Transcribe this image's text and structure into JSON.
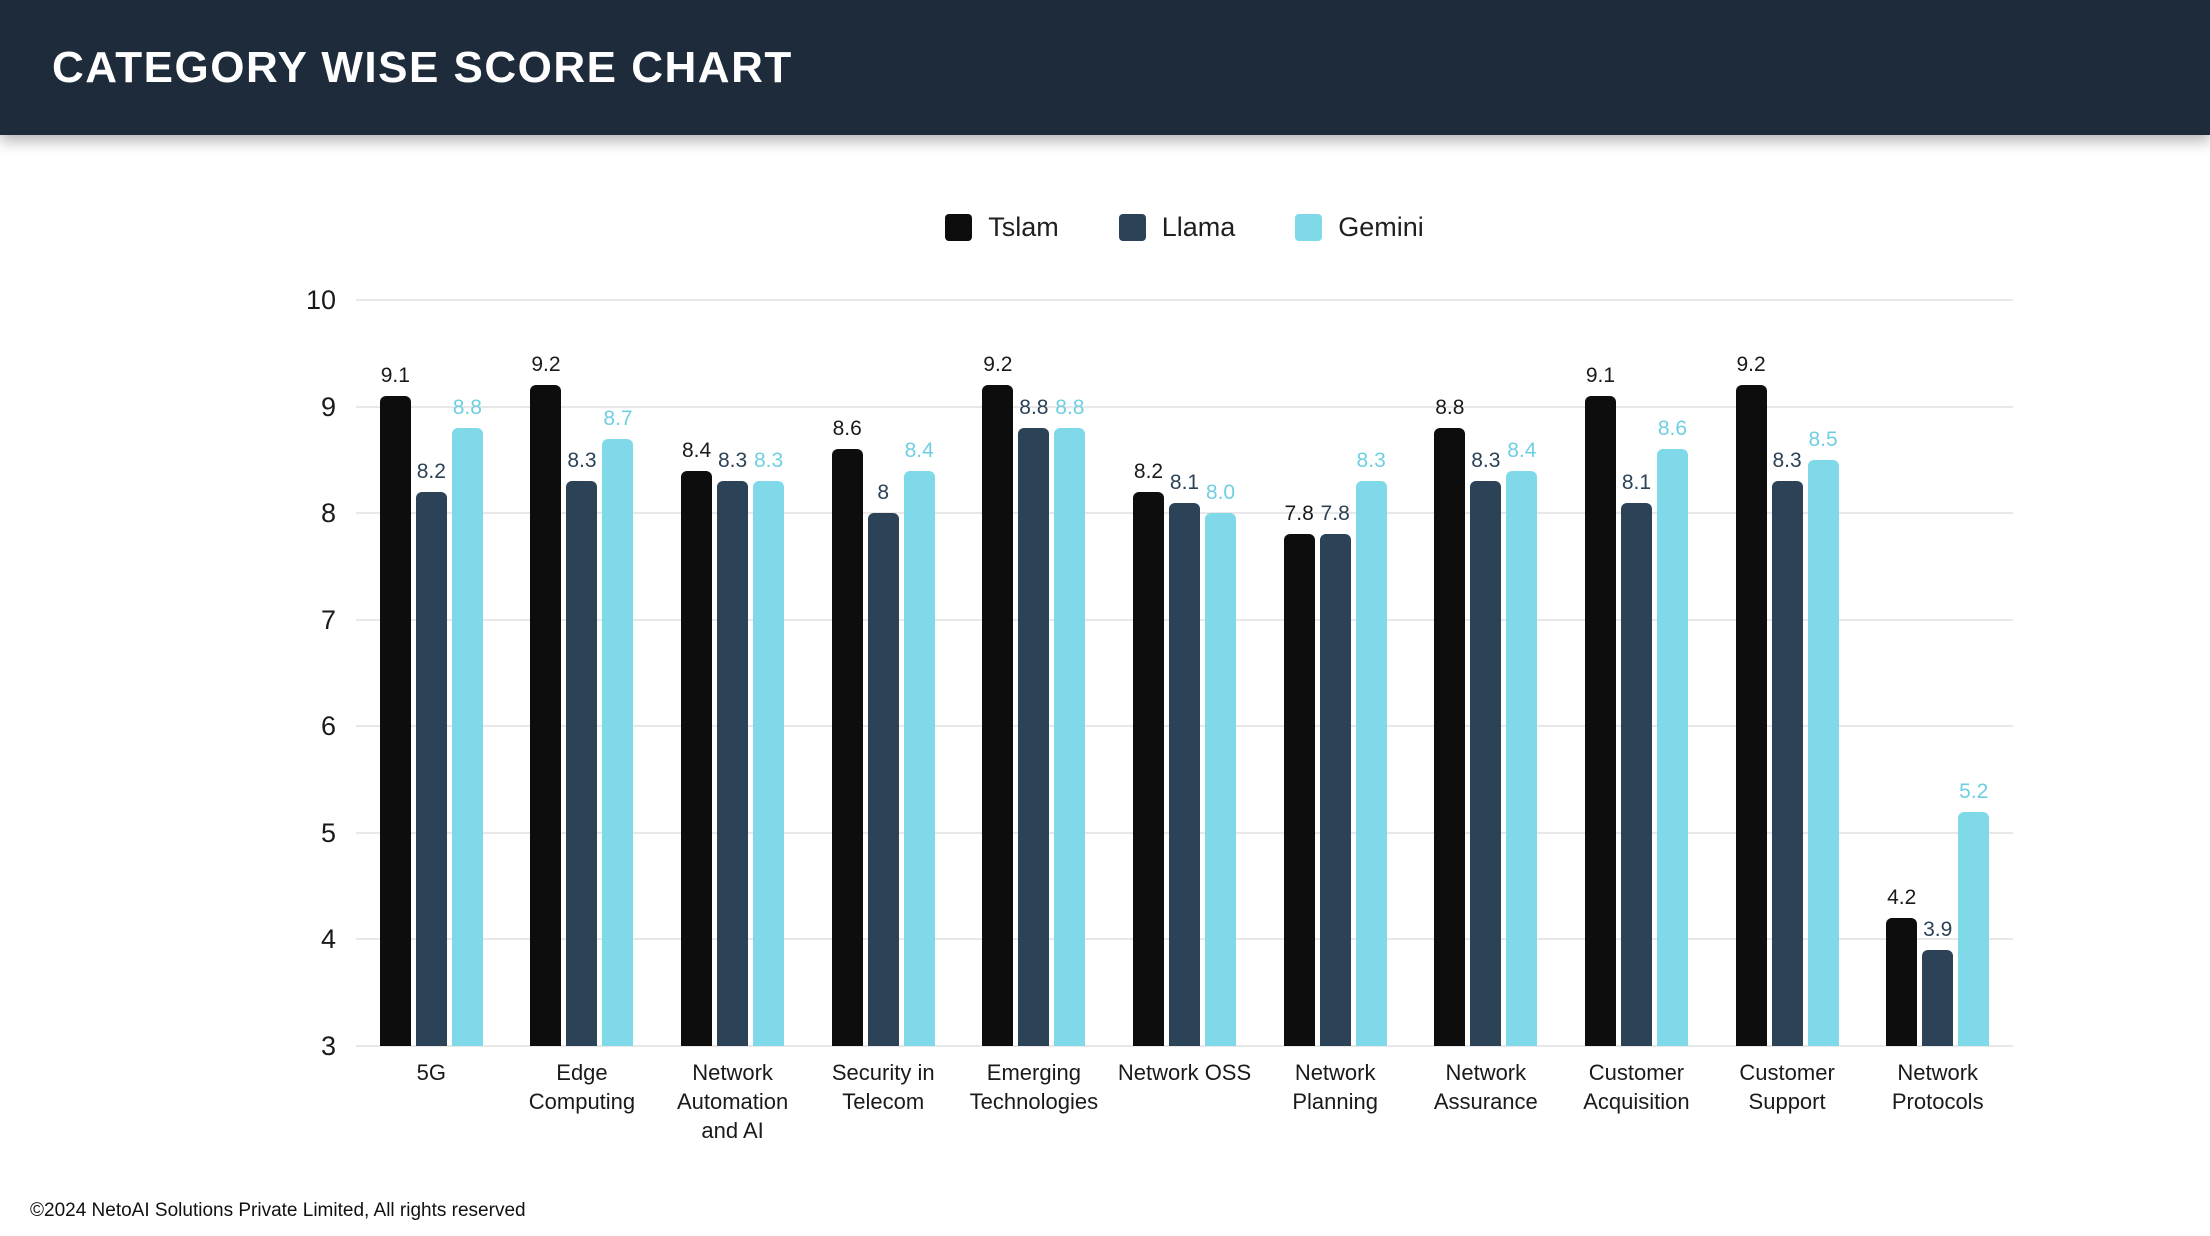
{
  "header": {
    "title": "CATEGORY WISE SCORE CHART"
  },
  "footer": {
    "copyright": "©2024 NetoAI Solutions Private Limited, All rights reserved"
  },
  "colors": {
    "header_bg": "#1e2b3b",
    "tslam": "#0d0d0d",
    "llama": "#2b4257",
    "gemini": "#7fd9e8",
    "gridline": "#e8e8e8"
  },
  "chart_data": {
    "type": "bar",
    "title": "CATEGORY WISE SCORE CHART",
    "xlabel": "",
    "ylabel": "",
    "ylim": [
      3,
      10
    ],
    "y_ticks": [
      10,
      9,
      8,
      7,
      6,
      5,
      4,
      3
    ],
    "grid": true,
    "legend_position": "top",
    "categories": [
      "5G",
      "Edge Computing",
      "Network Automation and AI",
      "Security in Telecom",
      "Emerging Technologies",
      "Network OSS",
      "Network Planning",
      "Network Assurance",
      "Customer Acquisition",
      "Customer Support",
      "Network Protocols"
    ],
    "series": [
      {
        "name": "Tslam",
        "color": "#0d0d0d",
        "label_color": "#1a1a1a",
        "values": [
          9.1,
          9.2,
          8.4,
          8.6,
          9.2,
          8.2,
          7.8,
          8.8,
          9.1,
          9.2,
          4.2
        ],
        "labels": [
          "9.1",
          "9.2",
          "8.4",
          "8.6",
          "9.2",
          "8.2",
          "7.8",
          "8.8",
          "9.1",
          "9.2",
          "4.2"
        ]
      },
      {
        "name": "Llama",
        "color": "#2b4257",
        "label_color": "#2b4257",
        "values": [
          8.2,
          8.3,
          8.3,
          8.0,
          8.8,
          8.1,
          7.8,
          8.3,
          8.1,
          8.3,
          3.9
        ],
        "labels": [
          "8.2",
          "8.3",
          "8.3",
          "8",
          "8.8",
          "8.1",
          "7.8",
          "8.3",
          "8.1",
          "8.3",
          "3.9"
        ]
      },
      {
        "name": "Gemini",
        "color": "#7fd9e8",
        "label_color": "#6fcfe2",
        "values": [
          8.8,
          8.7,
          8.3,
          8.4,
          8.8,
          8.0,
          8.3,
          8.4,
          8.6,
          8.5,
          5.2
        ],
        "labels": [
          "8.8",
          "8.7",
          "8.3",
          "8.4",
          "8.8",
          "8.0",
          "8.3",
          "8.4",
          "8.6",
          "8.5",
          "5.2"
        ]
      }
    ]
  }
}
